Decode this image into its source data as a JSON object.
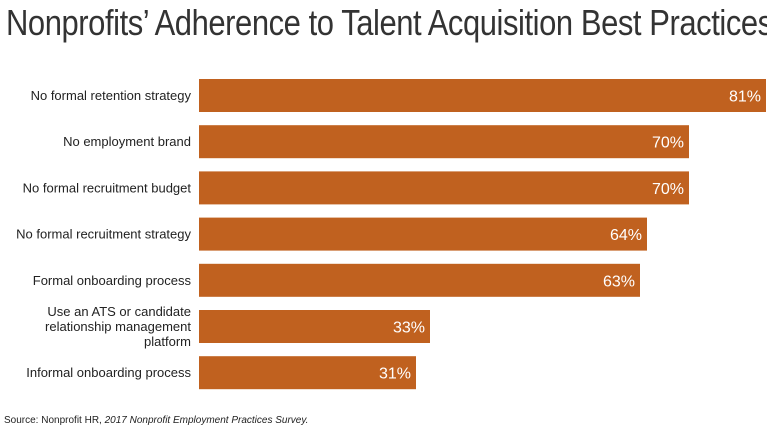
{
  "title": "Nonprofits’ Adherence to Talent Acquisition Best Practices",
  "source": {
    "prefix": "Source: Nonprofit HR, ",
    "publication": "2017 Nonprofit Employment Practices Survey."
  },
  "colors": {
    "bar": "#c0611f",
    "label": "#222222",
    "value": "#ffffff"
  },
  "chart_data": {
    "type": "bar",
    "orientation": "horizontal",
    "title": "Nonprofits’ Adherence to Talent Acquisition Best Practices",
    "categories": [
      [
        "No formal retention strategy"
      ],
      [
        "No employment brand"
      ],
      [
        "No formal recruitment budget"
      ],
      [
        "No formal recruitment strategy"
      ],
      [
        "Formal onboarding process"
      ],
      [
        "Use an ATS or candidate",
        "relationship management",
        "platform"
      ],
      [
        "Informal onboarding process"
      ]
    ],
    "values": [
      81,
      70,
      70,
      64,
      63,
      33,
      31
    ],
    "value_labels": [
      "81%",
      "70%",
      "70%",
      "64%",
      "63%",
      "33%",
      "31%"
    ],
    "unit": "%",
    "xlim": [
      0,
      81
    ],
    "grid": false,
    "legend": "none"
  }
}
